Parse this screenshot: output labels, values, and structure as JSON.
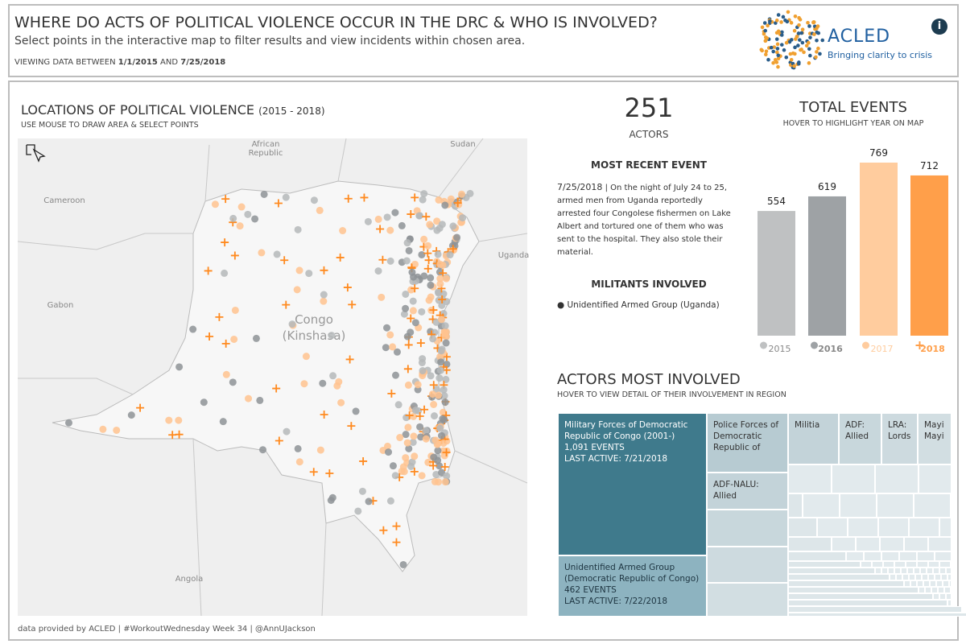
{
  "header": {
    "title": "WHERE DO ACTS OF POLITICAL VIOLENCE OCCUR IN THE DRC & WHO IS INVOLVED?",
    "subtitle": "Select points in the interactive map to filter results and view incidents within chosen area.",
    "range_prefix": "VIEWING DATA BETWEEN",
    "start_date": "1/1/2015",
    "range_joiner": "AND",
    "end_date": "7/25/2018",
    "logo_name": "ACLED",
    "logo_tagline": "Bringing clarity to crisis",
    "info_icon": "i"
  },
  "map": {
    "title": "LOCATIONS OF POLITICAL VIOLENCE",
    "title_years": "(2015 - 2018)",
    "subtitle": "USE MOUSE TO DRAW AREA & SELECT POINTS",
    "labels": [
      "African",
      "Republic",
      "Sudan",
      "Cameroon",
      "Uganda",
      "Gabon",
      "Congo",
      "(Kinshasa)",
      "Angola"
    ],
    "footer": "data provided by ACLED | #WorkoutWednesday Week 34 | @AnnUJackson"
  },
  "actors_count": {
    "value": 251,
    "label": "ACTORS"
  },
  "recent_event": {
    "title": "MOST RECENT EVENT",
    "date": "7/25/2018",
    "separator": "|",
    "text": "On the night of July 24 to 25, armed men from Uganda reportedly arrested four Congolese fishermen on Lake Albert and tortured one of them who was sent to the hospital. They also stole their material."
  },
  "militants": {
    "title": "MILITANTS INVOLVED",
    "items": [
      "Unidentified Armed Group (Uganda)"
    ]
  },
  "chart_data": {
    "type": "bar",
    "title": "TOTAL EVENTS",
    "subtitle": "HOVER TO HIGHLIGHT YEAR ON MAP",
    "categories": [
      "2015",
      "2016",
      "2017",
      "2018"
    ],
    "values": [
      554,
      619,
      769,
      712
    ],
    "colors": [
      "#bfc1c2",
      "#9ea2a5",
      "#ffcc9e",
      "#ff9f4a"
    ]
  },
  "treemap": {
    "title": "ACTORS MOST INVOLVED",
    "subtitle": "HOVER TO VIEW DETAIL OF THEIR INVOLVEMENT IN REGION",
    "events_unit": "EVENTS",
    "last_active_label": "LAST ACTIVE:",
    "items": [
      {
        "name": "Military Forces of Democratic Republic of Congo (2001-)",
        "events": "1,091",
        "last_active": "7/21/2018"
      },
      {
        "name": "Unidentified Armed Group (Democratic Republic of Congo)",
        "events": "462",
        "last_active": "7/22/2018"
      }
    ],
    "other_names": [
      "Police Forces of Democratic Republic of",
      "ADF-NALU: Allied",
      "Militia",
      "ADF: Allied",
      "LRA: Lords",
      "Mayi Mayi"
    ]
  }
}
